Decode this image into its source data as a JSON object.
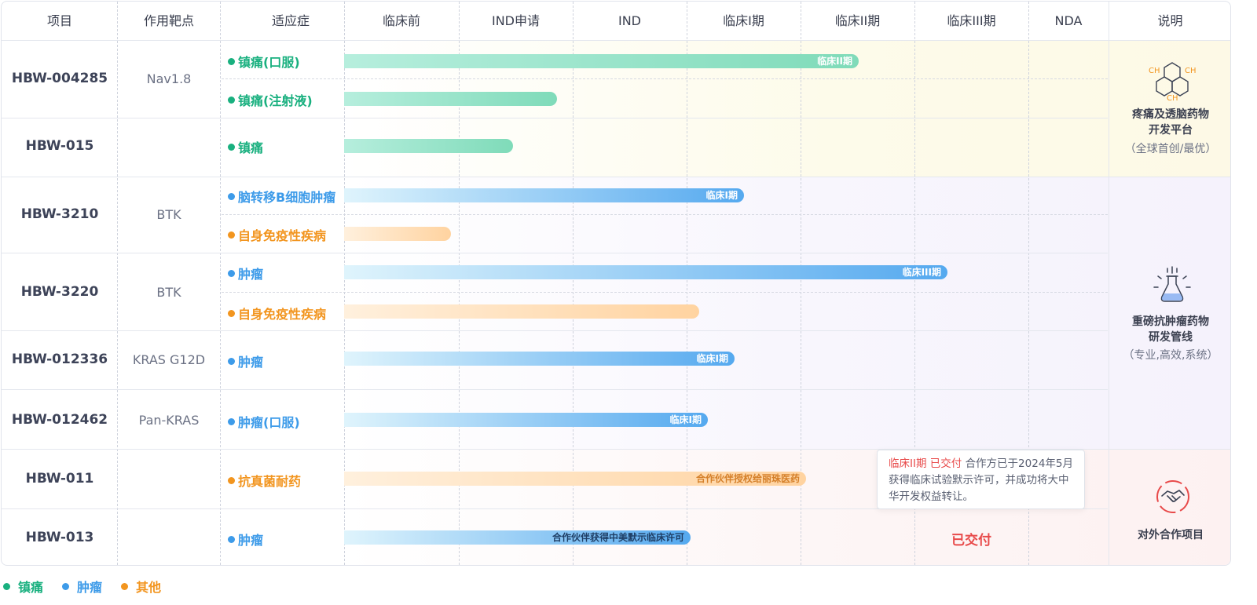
{
  "headers": {
    "project": "项目",
    "target": "作用靶点",
    "indication": "适应症",
    "preclinical": "临床前",
    "ind_application": "IND申请",
    "ind": "IND",
    "phase1": "临床I期",
    "phase2": "临床II期",
    "phase3": "临床III期",
    "nda": "NDA",
    "notes": "说明"
  },
  "colors": {
    "analgesic": "#19b07f",
    "tumor": "#3d9be9",
    "other": "#f2951f",
    "delivered": "#e84a4a"
  },
  "projects": [
    {
      "name": "HBW-004285",
      "target": "Nav1.8",
      "indications": [
        {
          "label": "镇痛(口服)",
          "category": "analgesic",
          "progress": 0.58,
          "stage_label": "临床II期"
        },
        {
          "label": "镇痛(注射液)",
          "category": "analgesic",
          "progress": 0.24,
          "stage_label": ""
        }
      ]
    },
    {
      "name": "HBW-015",
      "target": "",
      "indications": [
        {
          "label": "镇痛",
          "category": "analgesic",
          "progress": 0.19,
          "stage_label": ""
        }
      ]
    },
    {
      "name": "HBW-3210",
      "target": "BTK",
      "indications": [
        {
          "label": "脑转移B细胞肿瘤",
          "category": "tumor",
          "progress": 0.45,
          "stage_label": "临床I期"
        },
        {
          "label": "自身免疫性疾病",
          "category": "other",
          "progress": 0.12,
          "stage_label": ""
        }
      ]
    },
    {
      "name": "HBW-3220",
      "target": "BTK",
      "indications": [
        {
          "label": "肿瘤",
          "category": "tumor",
          "progress": 0.68,
          "stage_label": "临床III期"
        },
        {
          "label": "自身免疫性疾病",
          "category": "other",
          "progress": 0.4,
          "stage_label": ""
        }
      ]
    },
    {
      "name": "HBW-012336",
      "target": "KRAS G12D",
      "indications": [
        {
          "label": "肿瘤",
          "category": "tumor",
          "progress": 0.44,
          "stage_label": "临床I期"
        }
      ]
    },
    {
      "name": "HBW-012462",
      "target": "Pan-KRAS",
      "indications": [
        {
          "label": "肿瘤(口服)",
          "category": "tumor",
          "progress": 0.41,
          "stage_label": "临床I期"
        }
      ]
    },
    {
      "name": "HBW-011",
      "target": "",
      "indications": [
        {
          "label": "抗真菌耐药",
          "category": "other",
          "progress": 0.52,
          "stage_label": "合作伙伴授权给丽珠医药"
        }
      ]
    },
    {
      "name": "HBW-013",
      "target": "",
      "indications": [
        {
          "label": "肿瘤",
          "category": "tumor",
          "progress": 0.39,
          "stage_label": "合作伙伴获得中美默示临床许可"
        }
      ]
    }
  ],
  "groups": [
    {
      "title_line1": "疼痛及透脑药物",
      "title_line2": "开发平台",
      "subtitle": "（全球首创/最优）",
      "icon": "molecule-icon"
    },
    {
      "title_line1": "重磅抗肿瘤药物",
      "title_line2": "研发管线",
      "subtitle": "（专业,高效,系统）",
      "icon": "flask-icon"
    },
    {
      "title_line1": "对外合作项目",
      "title_line2": "",
      "subtitle": "",
      "icon": "handshake-icon"
    }
  ],
  "molecule_labels": {
    "a": "CH",
    "b": "CH",
    "c": "CH"
  },
  "delivered_text": "已交付",
  "tooltip": {
    "stage": "临床II期",
    "status": "已交付",
    "text": "合作方已于2024年5月获得临床试验默示许可，并成功将大中华开发权益转让。"
  },
  "legend": [
    {
      "label": "镇痛",
      "category": "analgesic"
    },
    {
      "label": "肿瘤",
      "category": "tumor"
    },
    {
      "label": "其他",
      "category": "other"
    }
  ]
}
